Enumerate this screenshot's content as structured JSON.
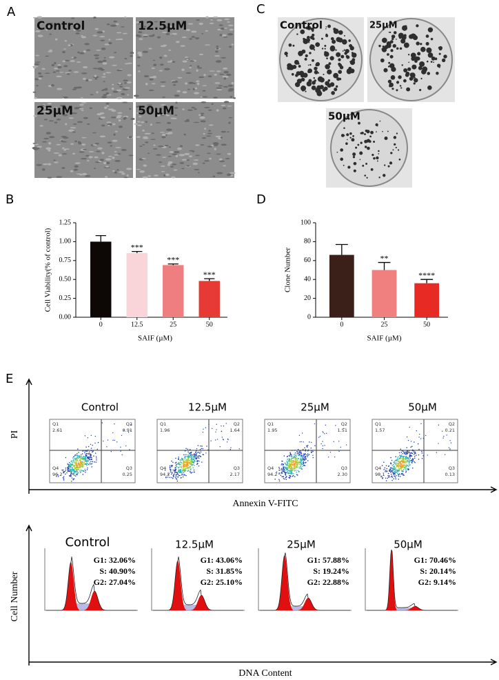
{
  "panel_labels": {
    "a": "A",
    "b": "B",
    "c": "C",
    "d": "D",
    "e": "E"
  },
  "micrographs": [
    "Control",
    "12.5µM",
    "25µM",
    "50µM"
  ],
  "colony_plates": [
    "Control",
    "25µM",
    "50µM"
  ],
  "chart_data": [
    {
      "type": "bar",
      "ylabel": "Cell Viability(% of control)",
      "xlabel": "SAIF (µM)",
      "categories": [
        "0",
        "12.5",
        "25",
        "50"
      ],
      "values": [
        1.0,
        0.85,
        0.69,
        0.48
      ],
      "errors": [
        0.08,
        0.02,
        0.015,
        0.03
      ],
      "annotations": [
        null,
        "***",
        "***",
        "***"
      ],
      "colors": [
        "#0d0706",
        "#f9d5da",
        "#ee7e80",
        "#e83a35"
      ],
      "ylim": [
        0,
        1.25
      ],
      "yticks": [
        {
          "value": 0,
          "label": "0.00"
        },
        {
          "value": 0.25,
          "label": "0.25"
        },
        {
          "value": 0.5,
          "label": "0.50"
        },
        {
          "value": 0.75,
          "label": "0.75"
        },
        {
          "value": 1,
          "label": "1.00"
        },
        {
          "value": 1.25,
          "label": "1.25"
        }
      ]
    },
    {
      "type": "bar",
      "ylabel": "Clone Number",
      "xlabel": "SAIF (µM)",
      "categories": [
        "0",
        "25",
        "50"
      ],
      "values": [
        66,
        50,
        36
      ],
      "errors": [
        11,
        8,
        4
      ],
      "annotations": [
        null,
        "**",
        "****"
      ],
      "colors": [
        "#3a2018",
        "#f07f80",
        "#e82a25"
      ],
      "ylim": [
        0,
        100
      ],
      "yticks": [
        0,
        20,
        40,
        60,
        80,
        100
      ]
    }
  ],
  "apoptosis": {
    "ylabel": "PI",
    "xlabel": "Annexin V-FITC",
    "plots": [
      {
        "title": "Control",
        "quadrants": [
          [
            "Q1",
            "2.61"
          ],
          [
            "Q2",
            "0.91"
          ],
          [
            "Q3",
            "0.25"
          ],
          [
            "Q4",
            "96.2"
          ]
        ]
      },
      {
        "title": "12.5µM",
        "quadrants": [
          [
            "Q1",
            "1.96"
          ],
          [
            "Q2",
            "1.64"
          ],
          [
            "Q3",
            "2.17"
          ],
          [
            "Q4",
            "94.2"
          ]
        ]
      },
      {
        "title": "25µM",
        "quadrants": [
          [
            "Q1",
            "1.95"
          ],
          [
            "Q2",
            "1.51"
          ],
          [
            "Q3",
            "2.30"
          ],
          [
            "Q4",
            "94.2"
          ]
        ]
      },
      {
        "title": "50µM",
        "quadrants": [
          [
            "Q1",
            "1.57"
          ],
          [
            "Q2",
            "0.21"
          ],
          [
            "Q3",
            "0.13"
          ],
          [
            "Q4",
            "98.1"
          ]
        ]
      }
    ]
  },
  "cell_cycle": {
    "ylabel": "Cell Number",
    "xlabel": "DNA Content",
    "plots": [
      {
        "title": "Control",
        "phases": [
          "G1: 32.06%",
          "S: 40.90%",
          "G2: 27.04%"
        ]
      },
      {
        "title": "12.5µM",
        "phases": [
          "G1: 43.06%",
          "S: 31.85%",
          "G2: 25.10%"
        ]
      },
      {
        "title": "25µM",
        "phases": [
          "G1: 57.88%",
          "S: 19.24%",
          "G2: 22.88%"
        ]
      },
      {
        "title": "50µM",
        "phases": [
          "G1: 70.46%",
          "S: 20.14%",
          "G2: 9.14%"
        ]
      }
    ]
  }
}
